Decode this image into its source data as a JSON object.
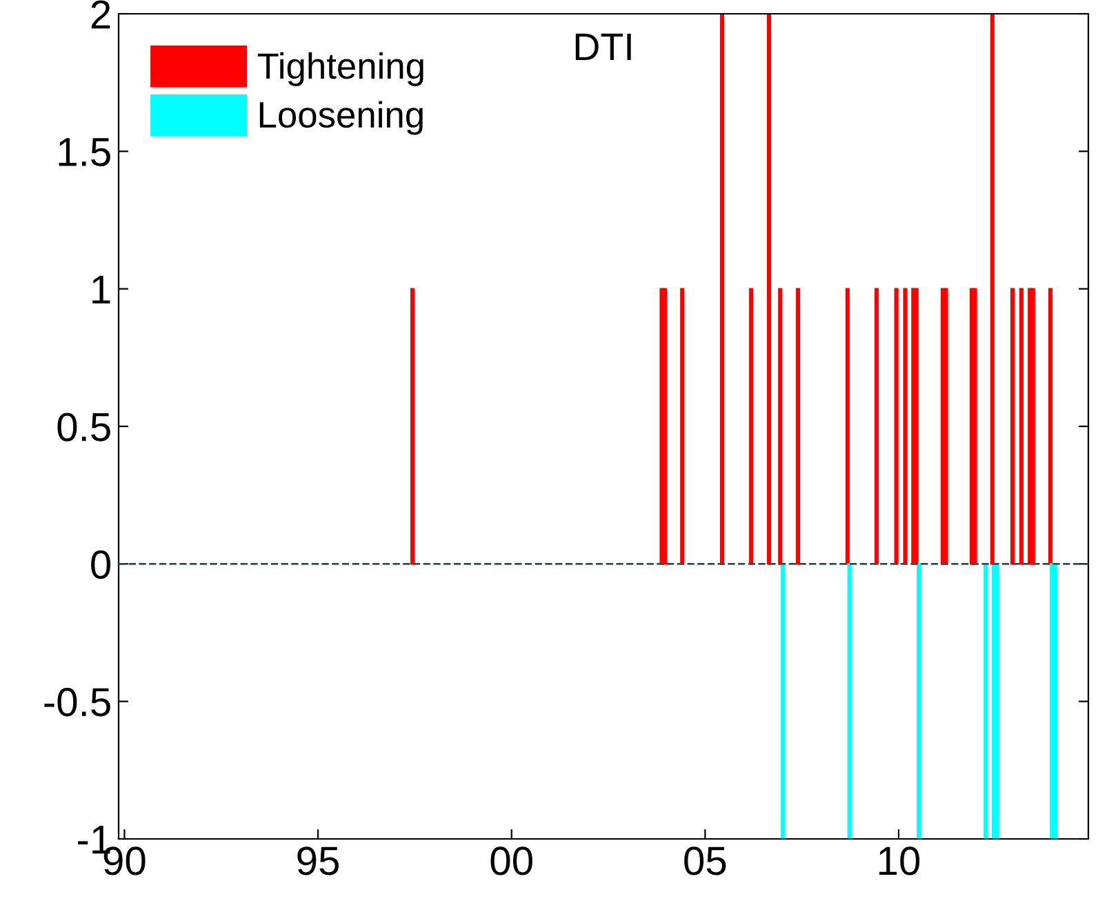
{
  "chart_data": {
    "type": "bar",
    "title": "DTI",
    "series": [
      {
        "name": "Tightening",
        "color": "#ff0000",
        "x": [
          1997.44,
          2003.88,
          2003.96,
          2004.41,
          2005.44,
          2006.19,
          2006.65,
          2006.94,
          2007.4,
          2008.68,
          2009.43,
          2009.94,
          2010.17,
          2010.38,
          2010.46,
          2011.14,
          2011.22,
          2011.89,
          2011.97,
          2012.42,
          2012.94,
          2013.17,
          2013.39,
          2013.47,
          2013.92
        ],
        "values": [
          1,
          1,
          1,
          1,
          2,
          1,
          2,
          1,
          1,
          1,
          1,
          1,
          1,
          1,
          1,
          1,
          1,
          1,
          1,
          2,
          1,
          1,
          1,
          1,
          1
        ]
      },
      {
        "name": "Loosening",
        "color": "#00ffff",
        "x": [
          2007.01,
          2008.73,
          2010.52,
          2012.25,
          2012.46,
          2012.54,
          2013.96,
          2014.04
        ],
        "values": [
          -1,
          -1,
          -1,
          -1,
          -1,
          -1,
          -1,
          -1
        ]
      }
    ],
    "xlim": [
      1989.85,
      2014.9
    ],
    "xticks": [
      {
        "value": 1990,
        "label": "90"
      },
      {
        "value": 1995,
        "label": "95"
      },
      {
        "value": 2000,
        "label": "00"
      },
      {
        "value": 2005,
        "label": "05"
      },
      {
        "value": 2010,
        "label": "10"
      }
    ],
    "ylim": [
      -1,
      2
    ],
    "yticks": [
      -1,
      -0.5,
      0,
      0.5,
      1,
      1.5,
      2
    ],
    "ref_lines": [
      {
        "axis": "y",
        "value": 0,
        "label": null,
        "color": "#2f4f4f",
        "line_style": "dashed"
      }
    ],
    "legend": "top left",
    "grid": false
  }
}
